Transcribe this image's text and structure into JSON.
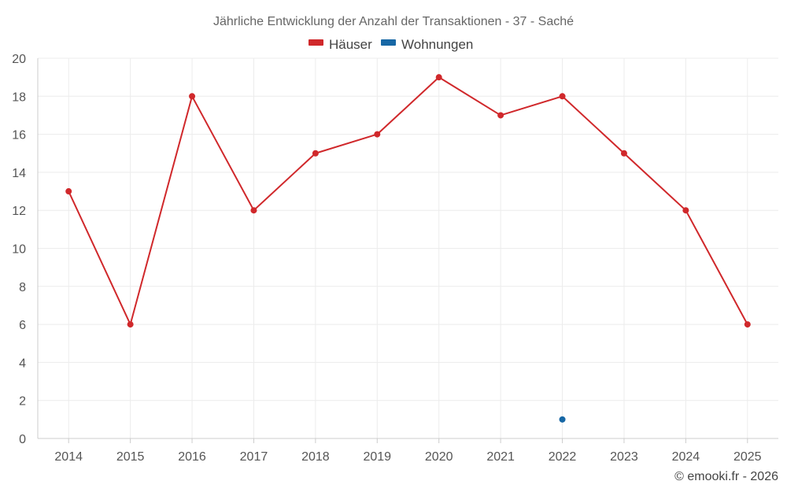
{
  "chart_data": {
    "type": "line",
    "title": "Jährliche Entwicklung der Anzahl der Transaktionen - 37 - Saché",
    "categories": [
      "2014",
      "2015",
      "2016",
      "2017",
      "2018",
      "2019",
      "2020",
      "2021",
      "2022",
      "2023",
      "2024",
      "2025"
    ],
    "series": [
      {
        "name": "Häuser",
        "color": "#d0282b",
        "values": [
          13,
          6,
          18,
          12,
          15,
          16,
          19,
          17,
          18,
          15,
          12,
          6
        ]
      },
      {
        "name": "Wohnungen",
        "color": "#1767a5",
        "values": [
          null,
          null,
          null,
          null,
          null,
          null,
          null,
          null,
          1,
          null,
          null,
          null
        ]
      }
    ],
    "ylim": [
      0,
      20
    ],
    "yticks": [
      0,
      2,
      4,
      6,
      8,
      10,
      12,
      14,
      16,
      18,
      20
    ],
    "xlabel": "",
    "ylabel": "",
    "grid": true,
    "legend": "top-center"
  },
  "footer": "© emooki.fr - 2026"
}
